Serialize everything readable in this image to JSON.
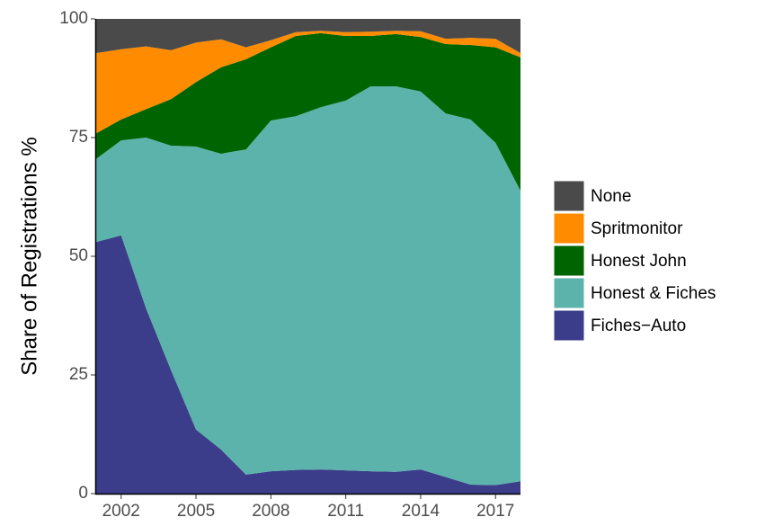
{
  "chart_data": {
    "type": "area",
    "stacked": true,
    "ylabel": "Share of Registrations %",
    "x": [
      2001,
      2002,
      2003,
      2004,
      2005,
      2006,
      2007,
      2008,
      2009,
      2010,
      2011,
      2012,
      2013,
      2014,
      2015,
      2016,
      2017,
      2018
    ],
    "xlim": [
      2001,
      2018
    ],
    "xticks": [
      2002,
      2005,
      2008,
      2011,
      2014,
      2017
    ],
    "ylim": [
      0,
      100
    ],
    "yticks": [
      0,
      25,
      50,
      75,
      100
    ],
    "series": [
      {
        "name": "Fiches−Auto",
        "color": "#3b3d8a",
        "values": [
          53,
          54.4,
          39,
          26,
          13.5,
          9.3,
          4,
          4.7,
          5,
          5.1,
          4.9,
          4.7,
          4.6,
          5.1,
          3.5,
          1.9,
          1.8,
          2.6
        ]
      },
      {
        "name": "Honest & Fiches",
        "color": "#5cb3ab",
        "values": [
          17.5,
          20,
          36,
          47.3,
          59.6,
          62.3,
          68.5,
          73.9,
          74.5,
          76.3,
          77.9,
          81.1,
          81.2,
          79.6,
          76.6,
          76.9,
          72.1,
          61.2
        ]
      },
      {
        "name": "Honest John",
        "color": "#006400",
        "values": [
          5.4,
          4.4,
          6,
          9.8,
          13.6,
          18.2,
          19,
          15.4,
          16.9,
          15.6,
          13.6,
          10.6,
          11,
          11.5,
          14.6,
          15.7,
          20.1,
          28.1
        ]
      },
      {
        "name": "Spritmonitor",
        "color": "#ff8c00",
        "values": [
          16.9,
          14.8,
          13.2,
          10.3,
          8.3,
          5.9,
          2.5,
          1.5,
          0.8,
          0.5,
          0.8,
          0.9,
          0.7,
          1.2,
          1.1,
          1.5,
          1.8,
          0.9
        ]
      },
      {
        "name": "None",
        "color": "#4a4a4a",
        "values": [
          7.2,
          6.4,
          5.8,
          6.6,
          5,
          4.3,
          6,
          4.5,
          2.8,
          2.5,
          2.8,
          2.7,
          2.5,
          2.6,
          4.2,
          4,
          4.2,
          7.2
        ]
      }
    ]
  }
}
